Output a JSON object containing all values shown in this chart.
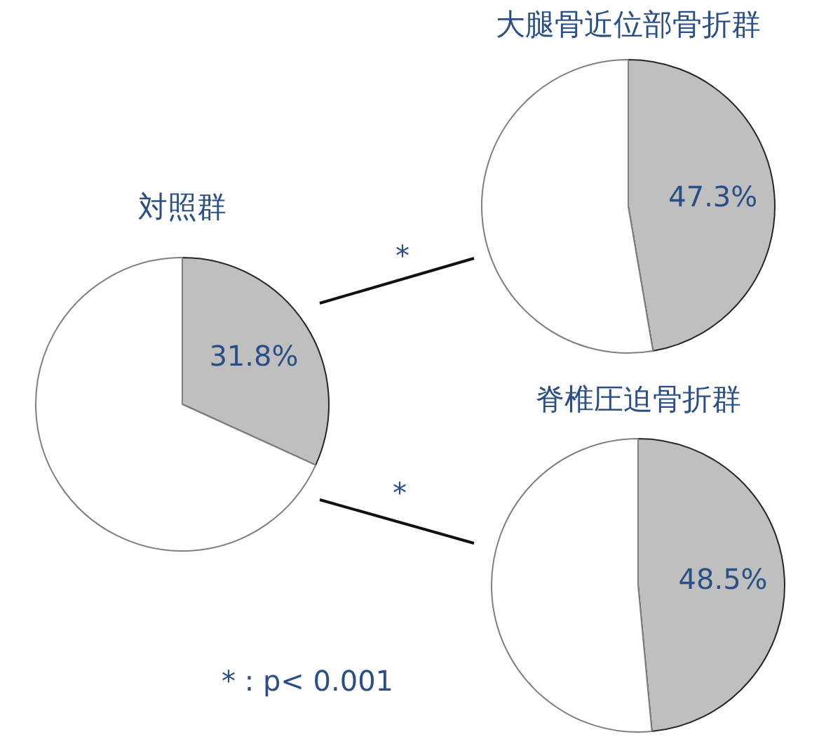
{
  "chart_data": [
    {
      "type": "pie",
      "title": "対照群",
      "categories": [
        null,
        null
      ],
      "values": [
        31.8,
        68.2
      ],
      "colors": [
        "#bfbfbf",
        "#ffffff"
      ],
      "value_labels": [
        "31.8%",
        null
      ],
      "annotations": [
        "* : p< 0.001"
      ]
    },
    {
      "type": "pie",
      "title": "大腿骨近位部骨折群",
      "categories": [
        null,
        null
      ],
      "values": [
        47.3,
        52.7
      ],
      "colors": [
        "#bfbfbf",
        "#ffffff"
      ],
      "value_labels": [
        "47.3%",
        null
      ],
      "annotations": [
        "*"
      ]
    },
    {
      "type": "pie",
      "title": "脊椎圧迫骨折群",
      "categories": [
        null,
        null
      ],
      "values": [
        48.5,
        51.5
      ],
      "colors": [
        "#bfbfbf",
        "#ffffff"
      ],
      "value_labels": [
        "48.5%",
        null
      ],
      "annotations": [
        "*"
      ]
    }
  ]
}
